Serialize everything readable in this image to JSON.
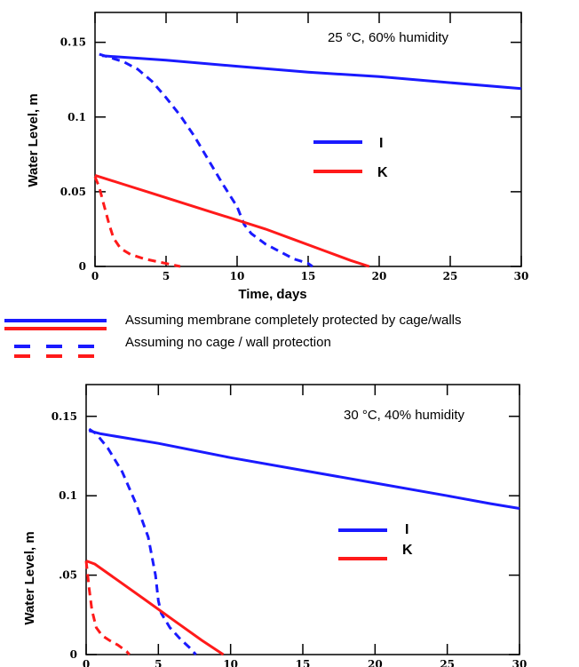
{
  "chart_data": [
    {
      "type": "line",
      "title": "",
      "annotation": "25 °C, 60% humidity",
      "xlabel": "Time, days",
      "ylabel": "Water Level, m",
      "xlim": [
        0,
        30
      ],
      "ylim": [
        0,
        0.17
      ],
      "xticks": [
        0,
        5,
        10,
        15,
        20,
        25,
        30
      ],
      "xtick_labels": [
        "0",
        "5",
        "10",
        "15",
        "20",
        "25",
        "30"
      ],
      "yticks": [
        0,
        0.05,
        0.1,
        0.15
      ],
      "ytick_labels": [
        "0",
        "0.05",
        "0.1",
        "0.15"
      ],
      "legend": [
        {
          "label": "I",
          "color": "#1a1aff"
        },
        {
          "label": "K",
          "color": "#ff1a1a"
        }
      ],
      "series": [
        {
          "name": "I",
          "color": "#1a1aff",
          "style": "solid",
          "x": [
            0.5,
            5,
            10,
            15,
            20,
            25,
            30
          ],
          "y": [
            0.141,
            0.138,
            0.134,
            0.13,
            0.127,
            0.123,
            0.119
          ]
        },
        {
          "name": "I",
          "color": "#1a1aff",
          "style": "dashed",
          "x": [
            0.3,
            1,
            2,
            3,
            4,
            5,
            6,
            7,
            8,
            9,
            10,
            10.5,
            11,
            12,
            13,
            14,
            15,
            15.3
          ],
          "y": [
            0.142,
            0.14,
            0.137,
            0.132,
            0.124,
            0.113,
            0.101,
            0.087,
            0.071,
            0.055,
            0.04,
            0.028,
            0.022,
            0.015,
            0.01,
            0.005,
            0.002,
            0
          ]
        },
        {
          "name": "K",
          "color": "#ff1a1a",
          "style": "solid",
          "x": [
            0,
            2,
            4,
            6,
            8,
            10,
            12,
            14,
            16,
            18,
            19.3
          ],
          "y": [
            0.061,
            0.055,
            0.049,
            0.043,
            0.037,
            0.031,
            0.025,
            0.018,
            0.011,
            0.004,
            0
          ]
        },
        {
          "name": "K",
          "color": "#ff1a1a",
          "style": "dashed",
          "x": [
            0,
            0.3,
            0.6,
            1,
            1.3,
            1.8,
            2.5,
            3.5,
            4.5,
            5.5,
            6
          ],
          "y": [
            0.06,
            0.053,
            0.042,
            0.028,
            0.019,
            0.012,
            0.008,
            0.005,
            0.003,
            0.001,
            0
          ]
        }
      ]
    },
    {
      "type": "line",
      "title": "",
      "annotation": "30 °C, 40% humidity",
      "xlabel": "",
      "ylabel": "Water Level, m",
      "xlim": [
        0,
        30
      ],
      "ylim": [
        0,
        0.17
      ],
      "xticks": [
        0,
        5,
        10,
        15,
        20,
        25,
        30
      ],
      "xtick_labels": [
        "0",
        "5",
        "10",
        "15",
        "20",
        "25",
        "30"
      ],
      "yticks": [
        0,
        0.05,
        0.1,
        0.15
      ],
      "ytick_labels": [
        "0",
        ".05",
        "0.1",
        "0.15"
      ],
      "legend": [
        {
          "label": "I",
          "color": "#1a1aff"
        },
        {
          "label": "K",
          "color": "#ff1a1a"
        }
      ],
      "series": [
        {
          "name": "I",
          "color": "#1a1aff",
          "style": "solid",
          "x": [
            0.2,
            1,
            5,
            10,
            15,
            20,
            25,
            28,
            30
          ],
          "y": [
            0.141,
            0.139,
            0.133,
            0.124,
            0.116,
            0.108,
            0.1,
            0.095,
            0.092
          ]
        },
        {
          "name": "I",
          "color": "#1a1aff",
          "style": "dashed",
          "x": [
            0.2,
            0.7,
            1.5,
            2.5,
            3.5,
            4.3,
            4.8,
            5.0,
            5.2,
            5.8,
            6.5,
            7.2,
            7.6
          ],
          "y": [
            0.142,
            0.139,
            0.13,
            0.115,
            0.094,
            0.074,
            0.05,
            0.034,
            0.026,
            0.017,
            0.01,
            0.004,
            0
          ]
        },
        {
          "name": "K",
          "color": "#ff1a1a",
          "style": "solid",
          "x": [
            0,
            0.6,
            2,
            4,
            6,
            8,
            9.5
          ],
          "y": [
            0.059,
            0.057,
            0.048,
            0.035,
            0.022,
            0.009,
            0
          ]
        },
        {
          "name": "K",
          "color": "#ff1a1a",
          "style": "dashed",
          "x": [
            0,
            0.2,
            0.4,
            0.7,
            1.1,
            1.6,
            2.2,
            2.8,
            3.0
          ],
          "y": [
            0.059,
            0.042,
            0.028,
            0.017,
            0.012,
            0.009,
            0.006,
            0.002,
            0
          ]
        }
      ]
    }
  ],
  "notes": {
    "solid_text": "Assuming membrane completely protected by cage/walls",
    "dashed_text": "Assuming no cage / wall protection"
  }
}
